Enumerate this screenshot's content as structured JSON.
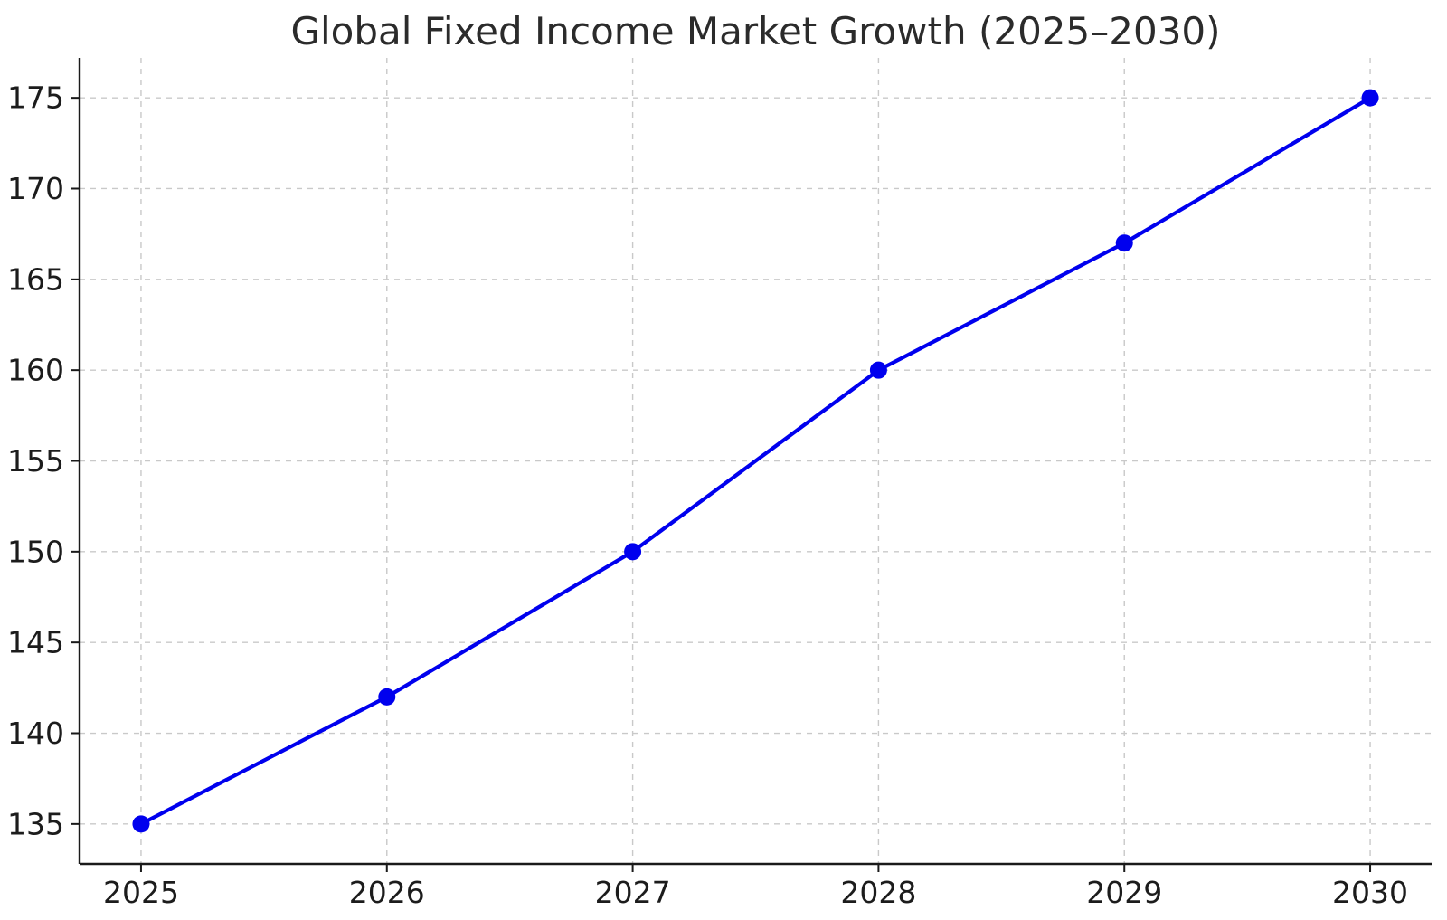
{
  "chart_data": {
    "type": "line",
    "title": "Global Fixed Income Market Growth (2025–2030)",
    "x": [
      2025,
      2026,
      2027,
      2028,
      2029,
      2030
    ],
    "values": [
      135,
      142,
      150,
      160,
      167,
      175
    ],
    "xlabel": "",
    "ylabel": "",
    "xlim": [
      2024.75,
      2030.25
    ],
    "ylim": [
      132.8,
      177.2
    ],
    "xticks": [
      2025,
      2026,
      2027,
      2028,
      2029,
      2030
    ],
    "yticks": [
      135,
      140,
      145,
      150,
      155,
      160,
      165,
      170,
      175
    ],
    "grid": true,
    "grid_style": "dashed",
    "legend": false,
    "marker": "circle",
    "colors": {
      "line": "#0000ee",
      "marker": "#0000ee",
      "grid": "#c9c9c9",
      "axis": "#1a1a1a",
      "tick_text": "#1c1c1c",
      "title": "#2b2b2b",
      "background": "#ffffff"
    }
  }
}
